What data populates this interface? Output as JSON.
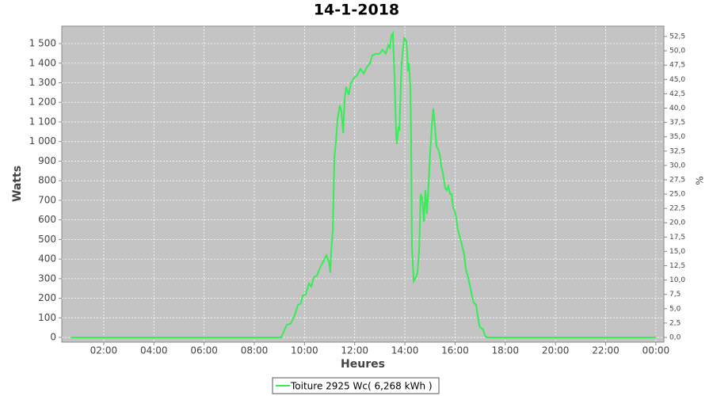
{
  "chart_data": {
    "type": "line",
    "title": "14-1-2018",
    "x_label": "Heures",
    "y_label": "Watts",
    "y2_label": "%",
    "x": [
      0.71,
      9.07,
      9.3,
      9.45,
      9.61,
      9.74,
      9.86,
      9.93,
      10.05,
      10.18,
      10.27,
      10.37,
      10.49,
      10.62,
      10.75,
      10.87,
      10.97,
      11.03,
      11.06,
      11.13,
      11.19,
      11.25,
      11.32,
      11.41,
      11.47,
      11.54,
      11.6,
      11.66,
      11.76,
      11.85,
      11.98,
      12.1,
      12.23,
      12.36,
      12.48,
      12.61,
      12.7,
      12.86,
      12.99,
      13.11,
      13.24,
      13.34,
      13.4,
      13.46,
      13.52,
      13.59,
      13.65,
      13.68,
      13.75,
      13.78,
      13.87,
      13.97,
      14.06,
      14.09,
      14.12,
      14.16,
      14.22,
      14.25,
      14.28,
      14.35,
      14.44,
      14.5,
      14.57,
      14.63,
      14.69,
      14.76,
      14.82,
      14.88,
      14.95,
      15.01,
      15.07,
      15.13,
      15.2,
      15.26,
      15.32,
      15.39,
      15.45,
      15.51,
      15.61,
      15.67,
      15.73,
      15.8,
      15.86,
      15.92,
      16.02,
      16.11,
      16.24,
      16.37,
      16.43,
      16.52,
      16.62,
      16.68,
      16.74,
      16.84,
      16.9,
      16.97,
      17.03,
      17.12,
      17.19,
      17.28,
      24.0
    ],
    "series": [
      {
        "name": "Toiture 2925 Wc( 6,268 kWh )",
        "color": "#33ee55",
        "values": [
          0,
          0,
          65,
          70,
          113,
          166,
          174,
          214,
          218,
          275,
          259,
          307,
          315,
          356,
          388,
          420,
          388,
          330,
          430,
          550,
          914,
          995,
          1116,
          1185,
          1156,
          1043,
          1217,
          1278,
          1237,
          1298,
          1326,
          1338,
          1371,
          1347,
          1379,
          1399,
          1440,
          1448,
          1448,
          1468,
          1448,
          1492,
          1480,
          1540,
          1553,
          1318,
          1035,
          987,
          1076,
          1055,
          1399,
          1529,
          1512,
          1460,
          1359,
          1399,
          1278,
          995,
          469,
          287,
          307,
          328,
          449,
          732,
          712,
          590,
          752,
          631,
          793,
          954,
          1076,
          1169,
          1076,
          975,
          962,
          934,
          873,
          841,
          760,
          752,
          772,
          732,
          732,
          663,
          631,
          550,
          489,
          420,
          348,
          307,
          247,
          206,
          178,
          166,
          113,
          57,
          49,
          40,
          8,
          0,
          0
        ]
      }
    ],
    "xlim": [
      0.33,
      24.32
    ],
    "xticks": [
      {
        "value": 2,
        "label": "02:00"
      },
      {
        "value": 4,
        "label": "04:00"
      },
      {
        "value": 6,
        "label": "06:00"
      },
      {
        "value": 8,
        "label": "08:00"
      },
      {
        "value": 10,
        "label": "10:00"
      },
      {
        "value": 12,
        "label": "12:00"
      },
      {
        "value": 14,
        "label": "14:00"
      },
      {
        "value": 16,
        "label": "16:00"
      },
      {
        "value": 18,
        "label": "18:00"
      },
      {
        "value": 20,
        "label": "20:00"
      },
      {
        "value": 22,
        "label": "22:00"
      },
      {
        "value": 24,
        "label": "00:00"
      }
    ],
    "ylim": [
      -24,
      1589
    ],
    "yticks": [
      0,
      100,
      200,
      300,
      400,
      500,
      600,
      700,
      800,
      900,
      {
        "value": 1000,
        "label": "1 000"
      },
      {
        "value": 1100,
        "label": "1 100"
      },
      {
        "value": 1200,
        "label": "1 200"
      },
      {
        "value": 1300,
        "label": "1 300"
      },
      {
        "value": 1400,
        "label": "1 400"
      },
      {
        "value": 1500,
        "label": "1 500"
      }
    ],
    "y2lim": [
      -0.83,
      54.3
    ],
    "y2ticks": [
      {
        "value": 0,
        "label": "0,0"
      },
      {
        "value": 2.5,
        "label": "2,5"
      },
      {
        "value": 5,
        "label": "5,0"
      },
      {
        "value": 7.5,
        "label": "7,5"
      },
      {
        "value": 10,
        "label": "10,0"
      },
      {
        "value": 12.5,
        "label": "12,5"
      },
      {
        "value": 15,
        "label": "15,0"
      },
      {
        "value": 17.5,
        "label": "17,5"
      },
      {
        "value": 20,
        "label": "20,0"
      },
      {
        "value": 22.5,
        "label": "22,5"
      },
      {
        "value": 25,
        "label": "25,0"
      },
      {
        "value": 27.5,
        "label": "27,5"
      },
      {
        "value": 30,
        "label": "30,0"
      },
      {
        "value": 32.5,
        "label": "32,5"
      },
      {
        "value": 35,
        "label": "35,0"
      },
      {
        "value": 37.5,
        "label": "37,5"
      },
      {
        "value": 40,
        "label": "40,0"
      },
      {
        "value": 42.5,
        "label": "42,5"
      },
      {
        "value": 45,
        "label": "45,0"
      },
      {
        "value": 47.5,
        "label": "47,5"
      },
      {
        "value": 50,
        "label": "50,0"
      },
      {
        "value": 52.5,
        "label": "52,5"
      }
    ],
    "grid": true
  }
}
